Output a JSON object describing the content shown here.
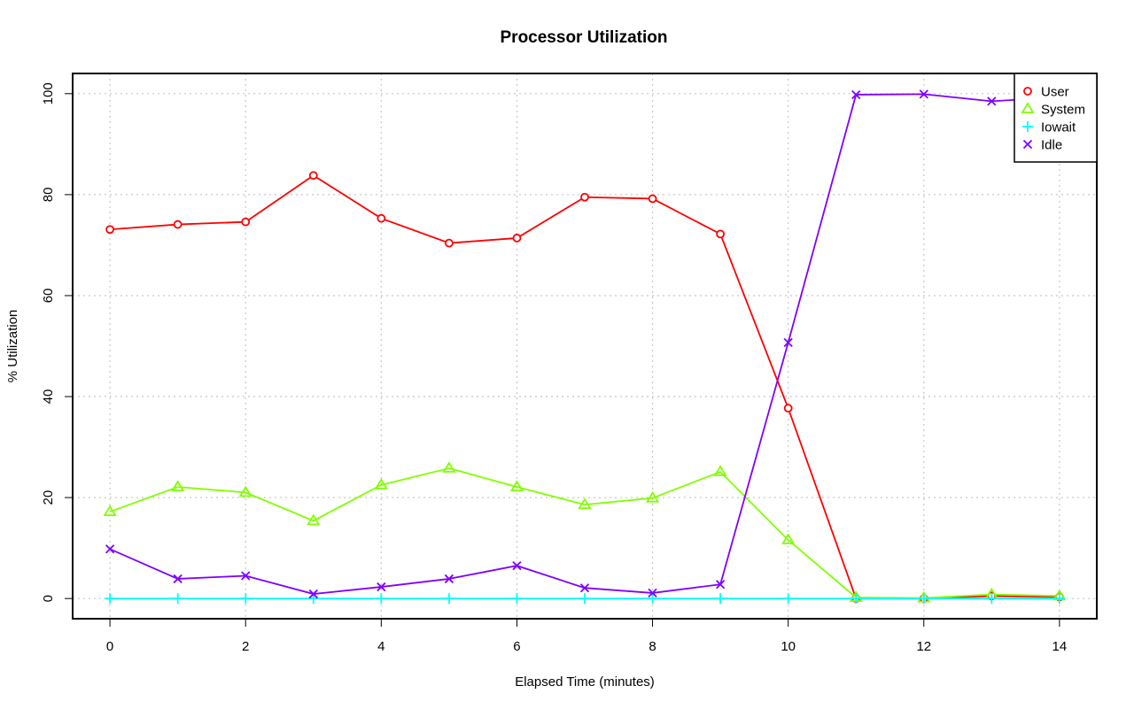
{
  "chart_data": {
    "type": "line",
    "title": "Processor Utilization",
    "xlabel": "Elapsed Time (minutes)",
    "ylabel": "% Utilization",
    "x": [
      0,
      1,
      2,
      3,
      4,
      5,
      6,
      7,
      8,
      9,
      10,
      11,
      12,
      13,
      14
    ],
    "xlim": [
      -0.55,
      14.55
    ],
    "ylim": [
      -4,
      104
    ],
    "xticks": [
      0,
      2,
      4,
      6,
      8,
      10,
      12,
      14
    ],
    "yticks": [
      0,
      20,
      40,
      60,
      80,
      100
    ],
    "grid": true,
    "grid_style": "dotted",
    "legend_position": "top-right",
    "series": [
      {
        "name": "User",
        "marker": "circle",
        "color": "#ff0000",
        "values": [
          73.1,
          74.1,
          74.6,
          83.8,
          75.3,
          70.4,
          71.4,
          79.5,
          79.2,
          72.2,
          37.7,
          0.0,
          0.0,
          0.5,
          0.3
        ]
      },
      {
        "name": "System",
        "marker": "triangle",
        "color": "#80ff00",
        "values": [
          17.2,
          22.1,
          21.0,
          15.4,
          22.5,
          25.8,
          22.1,
          18.6,
          19.9,
          25.1,
          11.6,
          0.2,
          0.1,
          0.8,
          0.5
        ]
      },
      {
        "name": "Iowait",
        "marker": "plus",
        "color": "#00ffff",
        "values": [
          0,
          0,
          0,
          0,
          0,
          0,
          0,
          0,
          0,
          0,
          0,
          0,
          0,
          0,
          0
        ]
      },
      {
        "name": "Idle",
        "marker": "cross",
        "color": "#8000ff",
        "values": [
          9.8,
          3.9,
          4.5,
          0.9,
          2.3,
          3.9,
          6.5,
          2.1,
          1.1,
          2.8,
          50.7,
          99.8,
          99.9,
          98.5,
          99.3
        ]
      }
    ]
  }
}
